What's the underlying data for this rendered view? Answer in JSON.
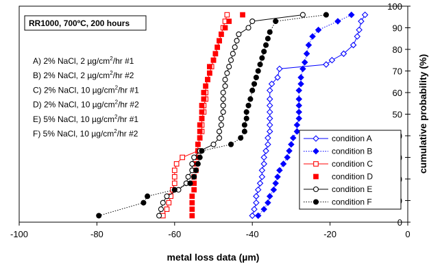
{
  "chart_data": {
    "type": "scatter",
    "title": "RR1000, 700ºC, 200 hours",
    "xlabel": "metal loss data (µm)",
    "ylabel": "cumulative probability (%)",
    "xlim": [
      -100,
      0
    ],
    "ylim": [
      0,
      100
    ],
    "x_ticks": [
      -100,
      -80,
      -60,
      -40,
      -20,
      0
    ],
    "y_ticks": [
      0,
      10,
      20,
      30,
      40,
      50,
      60,
      70,
      80,
      90,
      100
    ],
    "grid": false,
    "legend_position": "bottom-right",
    "conditions": [
      {
        "prefix": "A) 2% NaCl, 2 µg/cm",
        "sup": "2",
        "suffix": "/hr #1"
      },
      {
        "prefix": "B) 2% NaCl, 2 µg/cm",
        "sup": "2",
        "suffix": "/hr #2"
      },
      {
        "prefix": "C) 2% NaCl, 10 µg/cm",
        "sup": "2",
        "suffix": "/hr #1"
      },
      {
        "prefix": "D) 2% NaCl, 10 µg/cm",
        "sup": "2",
        "suffix": "/hr #2"
      },
      {
        "prefix": "E) 5% NaCl, 10 µg/cm",
        "sup": "2",
        "suffix": "/hr #1"
      },
      {
        "prefix": "F) 5% NaCl, 10 µg/cm",
        "sup": "2",
        "suffix": "/hr #2"
      }
    ],
    "series": [
      {
        "name": "condition A",
        "color": "#0000ff",
        "marker": "diamond-open",
        "line": "solid",
        "points": [
          [
            -40,
            3
          ],
          [
            -39.5,
            6
          ],
          [
            -39,
            9
          ],
          [
            -39,
            12
          ],
          [
            -38.5,
            15
          ],
          [
            -38,
            18
          ],
          [
            -37.5,
            21
          ],
          [
            -37.5,
            24
          ],
          [
            -37,
            27
          ],
          [
            -37,
            30
          ],
          [
            -36.5,
            33
          ],
          [
            -36,
            36
          ],
          [
            -36,
            39
          ],
          [
            -35.5,
            42
          ],
          [
            -35.5,
            45
          ],
          [
            -35.5,
            48
          ],
          [
            -35.5,
            51
          ],
          [
            -35.5,
            54
          ],
          [
            -35.5,
            57
          ],
          [
            -35.5,
            61
          ],
          [
            -35,
            64
          ],
          [
            -33.5,
            67
          ],
          [
            -33,
            71
          ],
          [
            -21,
            73
          ],
          [
            -19.5,
            75
          ],
          [
            -16.5,
            78
          ],
          [
            -14,
            82
          ],
          [
            -13,
            86
          ],
          [
            -12.5,
            89
          ],
          [
            -12,
            93
          ],
          [
            -11,
            96
          ]
        ]
      },
      {
        "name": "condition B",
        "color": "#0000ff",
        "marker": "diamond-filled",
        "line": "dotted",
        "points": [
          [
            -38.5,
            3
          ],
          [
            -37,
            6
          ],
          [
            -36,
            9
          ],
          [
            -35.5,
            12
          ],
          [
            -34.5,
            15
          ],
          [
            -34,
            18
          ],
          [
            -33.5,
            21
          ],
          [
            -33,
            24
          ],
          [
            -32,
            27
          ],
          [
            -31,
            30
          ],
          [
            -30.5,
            33
          ],
          [
            -30,
            36
          ],
          [
            -29.5,
            39
          ],
          [
            -28.5,
            42
          ],
          [
            -28.5,
            45
          ],
          [
            -28,
            48
          ],
          [
            -28,
            51
          ],
          [
            -28,
            54
          ],
          [
            -28,
            57
          ],
          [
            -28,
            61
          ],
          [
            -27.5,
            64
          ],
          [
            -27.5,
            67
          ],
          [
            -27,
            71
          ],
          [
            -26.5,
            74
          ],
          [
            -26,
            78
          ],
          [
            -25.5,
            82
          ],
          [
            -24.5,
            86
          ],
          [
            -23,
            89
          ],
          [
            -18,
            93
          ],
          [
            -14.5,
            96
          ]
        ]
      },
      {
        "name": "condition C",
        "color": "#ff0000",
        "marker": "square-open",
        "line": "solid",
        "points": [
          [
            -63,
            3
          ],
          [
            -62,
            6
          ],
          [
            -61.5,
            9
          ],
          [
            -61,
            12
          ],
          [
            -60.5,
            15
          ],
          [
            -60,
            18
          ],
          [
            -60,
            21
          ],
          [
            -60,
            24
          ],
          [
            -59.5,
            27
          ],
          [
            -58,
            30
          ],
          [
            -54,
            33
          ],
          [
            -54,
            36
          ],
          [
            -53.5,
            39
          ],
          [
            -53,
            42
          ],
          [
            -53,
            45
          ],
          [
            -53,
            48
          ],
          [
            -52.5,
            51
          ],
          [
            -52.5,
            54
          ],
          [
            -52,
            57
          ],
          [
            -52,
            60
          ],
          [
            -52,
            63
          ],
          [
            -51.5,
            66
          ],
          [
            -51,
            69
          ],
          [
            -50.5,
            72
          ],
          [
            -50,
            75
          ],
          [
            -49.5,
            78
          ],
          [
            -49,
            81
          ],
          [
            -48.5,
            84
          ],
          [
            -48,
            87
          ],
          [
            -47.5,
            90
          ],
          [
            -47,
            93
          ],
          [
            -46.5,
            96
          ]
        ]
      },
      {
        "name": "condition D",
        "color": "#ff0000",
        "marker": "square-filled",
        "line": "none",
        "points": [
          [
            -55.5,
            3
          ],
          [
            -55.5,
            6
          ],
          [
            -55.5,
            9
          ],
          [
            -55.5,
            12
          ],
          [
            -55,
            15
          ],
          [
            -55,
            18
          ],
          [
            -55,
            21
          ],
          [
            -54.5,
            24
          ],
          [
            -54.5,
            27
          ],
          [
            -54,
            30
          ],
          [
            -54,
            33
          ],
          [
            -54,
            36
          ],
          [
            -53.5,
            39
          ],
          [
            -53.5,
            42
          ],
          [
            -53.5,
            45
          ],
          [
            -53,
            48
          ],
          [
            -53,
            51
          ],
          [
            -53,
            54
          ],
          [
            -52.5,
            57
          ],
          [
            -52.5,
            60
          ],
          [
            -52,
            63
          ],
          [
            -51.5,
            66
          ],
          [
            -51,
            69
          ],
          [
            -51,
            72
          ],
          [
            -50,
            75
          ],
          [
            -49.5,
            78
          ],
          [
            -49,
            81
          ],
          [
            -48.5,
            84
          ],
          [
            -48,
            87
          ],
          [
            -47,
            90
          ],
          [
            -46,
            93
          ],
          [
            -42.5,
            96
          ]
        ]
      },
      {
        "name": "condition E",
        "color": "#000000",
        "marker": "circle-open",
        "line": "solid",
        "points": [
          [
            -64,
            3
          ],
          [
            -63.5,
            6
          ],
          [
            -63,
            9
          ],
          [
            -62,
            12
          ],
          [
            -59,
            15
          ],
          [
            -57,
            18
          ],
          [
            -56.5,
            21
          ],
          [
            -55.5,
            24
          ],
          [
            -55.5,
            27
          ],
          [
            -55,
            30
          ],
          [
            -53.5,
            33
          ],
          [
            -50,
            36
          ],
          [
            -48.5,
            39
          ],
          [
            -48.5,
            42
          ],
          [
            -48,
            45
          ],
          [
            -48,
            48
          ],
          [
            -47.5,
            51
          ],
          [
            -47.5,
            54
          ],
          [
            -47.5,
            57
          ],
          [
            -47.5,
            60
          ],
          [
            -47,
            63
          ],
          [
            -47,
            66
          ],
          [
            -46.5,
            69
          ],
          [
            -46,
            72
          ],
          [
            -45.5,
            75
          ],
          [
            -45,
            78
          ],
          [
            -44.5,
            81
          ],
          [
            -44,
            84
          ],
          [
            -43.5,
            87
          ],
          [
            -41,
            90
          ],
          [
            -40,
            93
          ],
          [
            -27,
            96
          ]
        ]
      },
      {
        "name": "condition F",
        "color": "#000000",
        "marker": "circle-filled",
        "line": "dotted",
        "points": [
          [
            -79.5,
            3
          ],
          [
            -68,
            9
          ],
          [
            -67,
            12
          ],
          [
            -60,
            15
          ],
          [
            -56,
            18
          ],
          [
            -55,
            21
          ],
          [
            -54.5,
            24
          ],
          [
            -54,
            27
          ],
          [
            -53.5,
            30
          ],
          [
            -53,
            33
          ],
          [
            -45.5,
            36
          ],
          [
            -43,
            39
          ],
          [
            -42,
            42
          ],
          [
            -42,
            45
          ],
          [
            -41.5,
            48
          ],
          [
            -41.5,
            51
          ],
          [
            -41,
            54
          ],
          [
            -40.5,
            57
          ],
          [
            -40,
            61
          ],
          [
            -39.5,
            64
          ],
          [
            -39,
            67
          ],
          [
            -38.5,
            70
          ],
          [
            -38,
            73
          ],
          [
            -37.5,
            76
          ],
          [
            -37,
            79
          ],
          [
            -36.5,
            82
          ],
          [
            -36,
            85
          ],
          [
            -35.5,
            88
          ],
          [
            -34,
            93
          ],
          [
            -21,
            96
          ]
        ]
      }
    ]
  }
}
